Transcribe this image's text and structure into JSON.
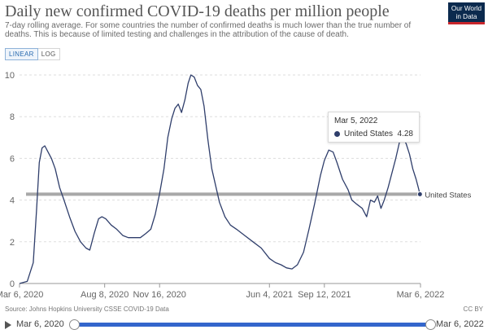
{
  "header": {
    "title": "Daily new confirmed COVID-19 deaths per million people",
    "subtitle": "7-day rolling average. For some countries the number of confirmed deaths is much lower than the true number of deaths. This is because of limited testing and challenges in the attribution of the cause of death.",
    "logo_line1": "Our World",
    "logo_line2": "in Data"
  },
  "scale_toggle": {
    "linear_label": "LINEAR",
    "log_label": "LOG",
    "active": "linear"
  },
  "tooltip": {
    "date": "Mar 5, 2022",
    "series": "United States",
    "value": "4.28"
  },
  "footer": {
    "source": "Source: Johns Hopkins University CSSE COVID-19 Data",
    "license": "CC BY"
  },
  "timeline": {
    "start_label": "Mar 6, 2020",
    "end_label": "Mar 6, 2022"
  },
  "colors": {
    "series": "#2f3e6b",
    "reference": "#999999",
    "timeline": "#3366cc"
  },
  "chart_data": {
    "type": "line",
    "x_type": "date",
    "x_range": [
      "2020-03-06",
      "2022-03-06"
    ],
    "ylim": [
      0,
      10
    ],
    "yticks": [
      0,
      2,
      4,
      6,
      8,
      10
    ],
    "xticks": [
      {
        "date": "2020-03-06",
        "label": "Mar 6, 2020"
      },
      {
        "date": "2020-08-08",
        "label": "Aug 8, 2020"
      },
      {
        "date": "2020-11-16",
        "label": "Nov 16, 2020"
      },
      {
        "date": "2021-06-04",
        "label": "Jun 4, 2021"
      },
      {
        "date": "2021-09-12",
        "label": "Sep 12, 2021"
      },
      {
        "date": "2022-03-06",
        "label": "Mar 6, 2022"
      }
    ],
    "grid": true,
    "legend": "inline-end",
    "series": [
      {
        "name": "United States",
        "end_label": "United States",
        "points": [
          [
            "2020-03-06",
            0.0
          ],
          [
            "2020-03-20",
            0.1
          ],
          [
            "2020-03-31",
            1.0
          ],
          [
            "2020-04-06",
            3.5
          ],
          [
            "2020-04-11",
            5.8
          ],
          [
            "2020-04-16",
            6.5
          ],
          [
            "2020-04-21",
            6.6
          ],
          [
            "2020-04-27",
            6.3
          ],
          [
            "2020-05-03",
            6.0
          ],
          [
            "2020-05-10",
            5.5
          ],
          [
            "2020-05-18",
            4.6
          ],
          [
            "2020-05-26",
            4.0
          ],
          [
            "2020-06-05",
            3.2
          ],
          [
            "2020-06-15",
            2.5
          ],
          [
            "2020-06-25",
            2.0
          ],
          [
            "2020-07-05",
            1.7
          ],
          [
            "2020-07-12",
            1.6
          ],
          [
            "2020-07-20",
            2.4
          ],
          [
            "2020-07-28",
            3.1
          ],
          [
            "2020-08-03",
            3.2
          ],
          [
            "2020-08-10",
            3.1
          ],
          [
            "2020-08-20",
            2.8
          ],
          [
            "2020-08-30",
            2.6
          ],
          [
            "2020-09-10",
            2.3
          ],
          [
            "2020-09-20",
            2.2
          ],
          [
            "2020-10-01",
            2.2
          ],
          [
            "2020-10-12",
            2.2
          ],
          [
            "2020-10-22",
            2.4
          ],
          [
            "2020-10-31",
            2.6
          ],
          [
            "2020-11-08",
            3.3
          ],
          [
            "2020-11-16",
            4.3
          ],
          [
            "2020-11-24",
            5.5
          ],
          [
            "2020-12-01",
            7.0
          ],
          [
            "2020-12-08",
            7.9
          ],
          [
            "2020-12-14",
            8.4
          ],
          [
            "2020-12-20",
            8.6
          ],
          [
            "2020-12-26",
            8.2
          ],
          [
            "2021-01-01",
            8.8
          ],
          [
            "2021-01-07",
            9.6
          ],
          [
            "2021-01-12",
            10.0
          ],
          [
            "2021-01-18",
            9.9
          ],
          [
            "2021-01-24",
            9.5
          ],
          [
            "2021-01-30",
            9.3
          ],
          [
            "2021-02-05",
            8.5
          ],
          [
            "2021-02-12",
            6.9
          ],
          [
            "2021-02-19",
            5.5
          ],
          [
            "2021-02-26",
            4.7
          ],
          [
            "2021-03-05",
            3.9
          ],
          [
            "2021-03-15",
            3.2
          ],
          [
            "2021-03-25",
            2.8
          ],
          [
            "2021-04-05",
            2.6
          ],
          [
            "2021-04-20",
            2.3
          ],
          [
            "2021-05-05",
            2.0
          ],
          [
            "2021-05-20",
            1.7
          ],
          [
            "2021-06-04",
            1.2
          ],
          [
            "2021-06-15",
            1.0
          ],
          [
            "2021-06-25",
            0.9
          ],
          [
            "2021-07-05",
            0.75
          ],
          [
            "2021-07-15",
            0.7
          ],
          [
            "2021-07-25",
            0.9
          ],
          [
            "2021-08-05",
            1.5
          ],
          [
            "2021-08-15",
            2.6
          ],
          [
            "2021-08-25",
            3.8
          ],
          [
            "2021-09-05",
            5.2
          ],
          [
            "2021-09-12",
            5.9
          ],
          [
            "2021-09-20",
            6.4
          ],
          [
            "2021-09-28",
            6.3
          ],
          [
            "2021-10-05",
            5.8
          ],
          [
            "2021-10-15",
            5.0
          ],
          [
            "2021-10-25",
            4.5
          ],
          [
            "2021-11-01",
            4.0
          ],
          [
            "2021-11-10",
            3.8
          ],
          [
            "2021-11-20",
            3.6
          ],
          [
            "2021-11-28",
            3.2
          ],
          [
            "2021-12-05",
            4.0
          ],
          [
            "2021-12-12",
            3.9
          ],
          [
            "2021-12-18",
            4.2
          ],
          [
            "2021-12-24",
            3.6
          ],
          [
            "2021-12-30",
            4.0
          ],
          [
            "2022-01-06",
            4.6
          ],
          [
            "2022-01-13",
            5.3
          ],
          [
            "2022-01-20",
            6.0
          ],
          [
            "2022-01-27",
            6.8
          ],
          [
            "2022-02-02",
            7.0
          ],
          [
            "2022-02-08",
            6.7
          ],
          [
            "2022-02-14",
            6.2
          ],
          [
            "2022-02-20",
            5.5
          ],
          [
            "2022-02-26",
            5.0
          ],
          [
            "2022-03-02",
            4.6
          ],
          [
            "2022-03-05",
            4.28
          ]
        ]
      }
    ],
    "reference_line": {
      "y": 4.28
    }
  }
}
